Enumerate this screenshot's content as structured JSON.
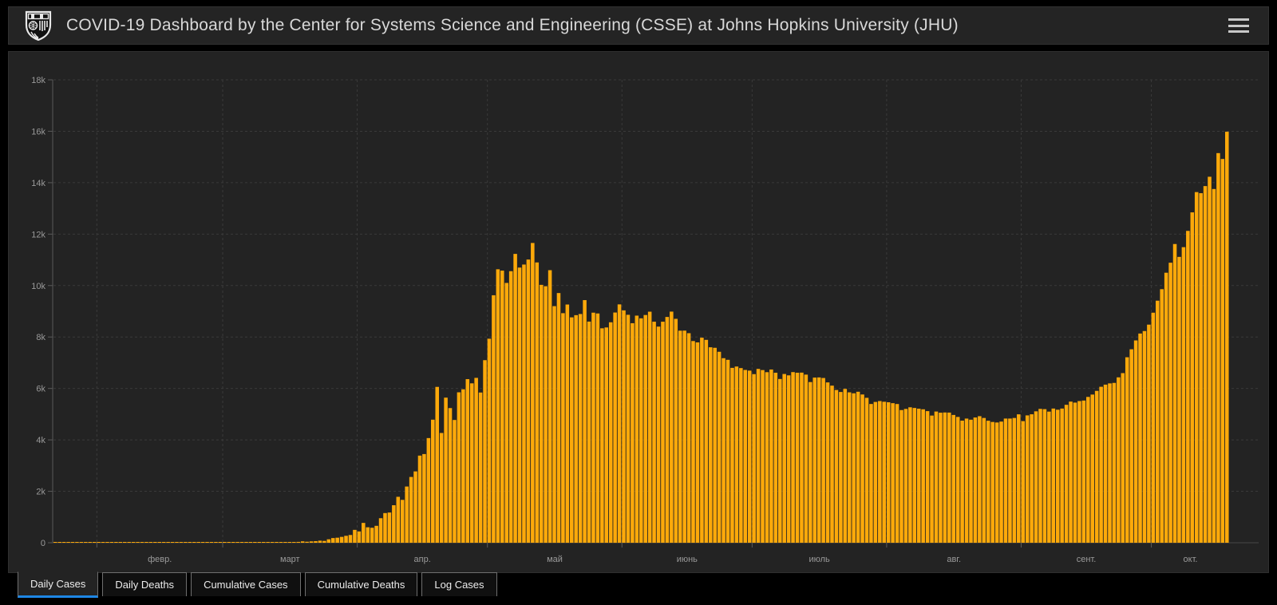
{
  "header": {
    "title": "COVID-19 Dashboard by the Center for Systems Science and Engineering (CSSE) at Johns Hopkins University (JHU)"
  },
  "icons": {
    "logo": "jhu-shield-logo",
    "menu": "hamburger-menu-icon"
  },
  "tabs": [
    {
      "label": "Daily Cases",
      "active": true
    },
    {
      "label": "Daily Deaths",
      "active": false
    },
    {
      "label": "Cumulative Cases",
      "active": false
    },
    {
      "label": "Cumulative Deaths",
      "active": false
    },
    {
      "label": "Log Cases",
      "active": false
    }
  ],
  "colors": {
    "background": "#000000",
    "header_bg": "#242424",
    "panel_bg": "#232323",
    "bar": "#FCA90A",
    "active_tab_accent": "#1E87E5",
    "grid": "#3A3A3A",
    "axis": "#5A5A5A",
    "axis_text": "#9A9A9A",
    "title_text": "#D8D8D8",
    "tab_text": "#ECECEC",
    "tab_border": "#6F6F6F"
  },
  "chart_data": {
    "type": "bar",
    "series_name": "Daily Cases",
    "start_date": "2020-01-22",
    "end_date": "2020-10-18",
    "ylim": [
      0,
      18000
    ],
    "y_ticks": [
      "0",
      "2k",
      "4k",
      "6k",
      "8k",
      "10k",
      "12k",
      "14k",
      "16k",
      "18k"
    ],
    "grid": true,
    "legend": "none",
    "x_months": [
      {
        "label": "",
        "days": 10
      },
      {
        "label": "февр.",
        "days": 29
      },
      {
        "label": "март",
        "days": 31
      },
      {
        "label": "апр.",
        "days": 30
      },
      {
        "label": "май",
        "days": 31
      },
      {
        "label": "июнь",
        "days": 30
      },
      {
        "label": "июль",
        "days": 31
      },
      {
        "label": "авг.",
        "days": 31
      },
      {
        "label": "сент.",
        "days": 30
      },
      {
        "label": "окт.",
        "days": 18
      }
    ],
    "values": [
      0,
      0,
      0,
      0,
      0,
      0,
      0,
      0,
      0,
      2,
      0,
      0,
      0,
      0,
      0,
      0,
      0,
      0,
      0,
      0,
      0,
      0,
      0,
      0,
      0,
      0,
      0,
      0,
      0,
      0,
      0,
      0,
      0,
      0,
      0,
      0,
      0,
      0,
      0,
      0,
      0,
      1,
      0,
      0,
      3,
      0,
      0,
      3,
      4,
      5,
      14,
      14,
      11,
      14,
      30,
      21,
      33,
      54,
      39,
      53,
      61,
      80,
      71,
      134,
      182,
      196,
      228,
      270,
      302,
      501,
      440,
      771,
      601,
      582,
      658,
      954,
      1154,
      1175,
      1459,
      1786,
      1667,
      2186,
      2558,
      2774,
      3388,
      3448,
      4070,
      4785,
      6060,
      4268,
      5642,
      5236,
      4774,
      5849,
      5966,
      6361,
      6198,
      6411,
      5841,
      7099,
      7933,
      9623,
      10633,
      10581,
      10102,
      10559,
      11231,
      10699,
      10817,
      11012,
      11656,
      10899,
      10028,
      9974,
      10598,
      9200,
      9709,
      8926,
      9263,
      8764,
      8849,
      8894,
      9434,
      8599,
      8946,
      8915,
      8338,
      8371,
      8572,
      8952,
      9268,
      9035,
      8863,
      8536,
      8831,
      8726,
      8855,
      8984,
      8595,
      8404,
      8595,
      8779,
      8987,
      8706,
      8246,
      8248,
      8148,
      7843,
      7790,
      7972,
      7889,
      7600,
      7580,
      7425,
      7176,
      7113,
      6800,
      6852,
      6791,
      6719,
      6693,
      6556,
      6760,
      6714,
      6632,
      6736,
      6611,
      6368,
      6562,
      6509,
      6635,
      6611,
      6615,
      6537,
      6248,
      6422,
      6428,
      6406,
      6234,
      6109,
      5940,
      5862,
      5982,
      5848,
      5811,
      5871,
      5765,
      5635,
      5395,
      5475,
      5509,
      5482,
      5462,
      5427,
      5394,
      5159,
      5204,
      5267,
      5241,
      5212,
      5189,
      5118,
      4945,
      5102,
      5057,
      5065,
      5061,
      4969,
      4892,
      4748,
      4828,
      4785,
      4870,
      4921,
      4852,
      4744,
      4696,
      4676,
      4711,
      4829,
      4829,
      4852,
      4993,
      4729,
      4952,
      4995,
      5110,
      5205,
      5195,
      5099,
      5218,
      5172,
      5218,
      5363,
      5488,
      5449,
      5509,
      5529,
      5670,
      5762,
      5905,
      6065,
      6148,
      6196,
      6215,
      6431,
      6595,
      7212,
      7523,
      7867,
      8135,
      8232,
      8481,
      8945,
      9412,
      9859,
      10499,
      10888,
      11615,
      11115,
      11493,
      12126,
      12846,
      13634,
      13592,
      13868,
      14231,
      13754,
      15150,
      14922,
      15982
    ],
    "bar_color": "#FCA90A"
  }
}
